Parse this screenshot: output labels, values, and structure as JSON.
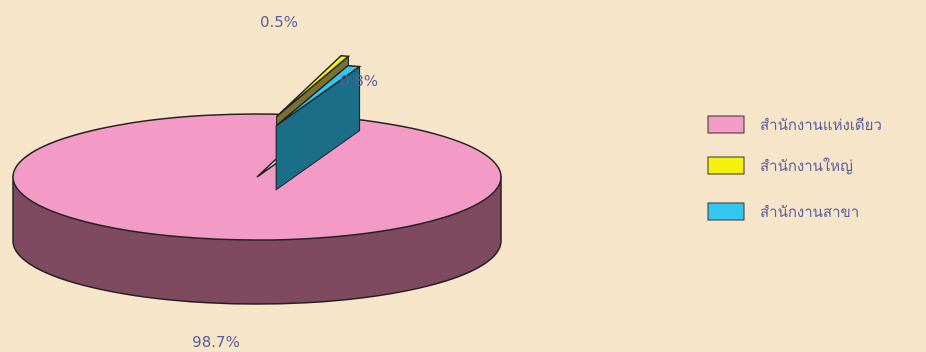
{
  "chart_data": {
    "type": "pie",
    "style": "3d-exploded",
    "categories": [
      "สำนักงานแห่งเดียว",
      "สำนักงานใหญ่",
      "สำนักงานสาขา"
    ],
    "values": [
      98.7,
      0.5,
      0.8
    ],
    "value_labels": [
      "98.7%",
      "0.5%",
      "0.8%"
    ],
    "colors": [
      "#F49AC6",
      "#F5F00E",
      "#33C8F0"
    ],
    "side_colors": [
      "#7F4A60",
      "#7A7032",
      "#1A6E88"
    ],
    "legend": {
      "position": "right",
      "items": [
        "สำนักงานแห่งเดียว",
        "สำนักงานใหญ่",
        "สำนักงานสาขา"
      ]
    }
  }
}
